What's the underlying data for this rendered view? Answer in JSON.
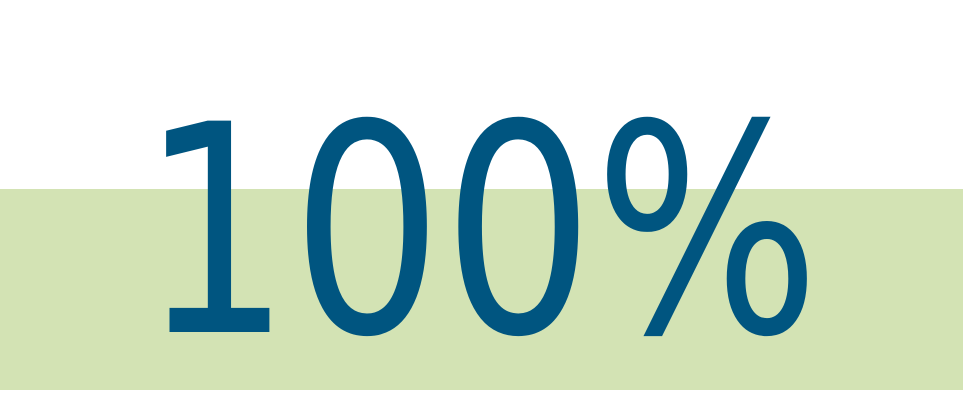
{
  "headline": {
    "value_text": "100%"
  },
  "colors": {
    "background": "#ffffff",
    "band": "#d3e3b4",
    "text": "#005580"
  }
}
